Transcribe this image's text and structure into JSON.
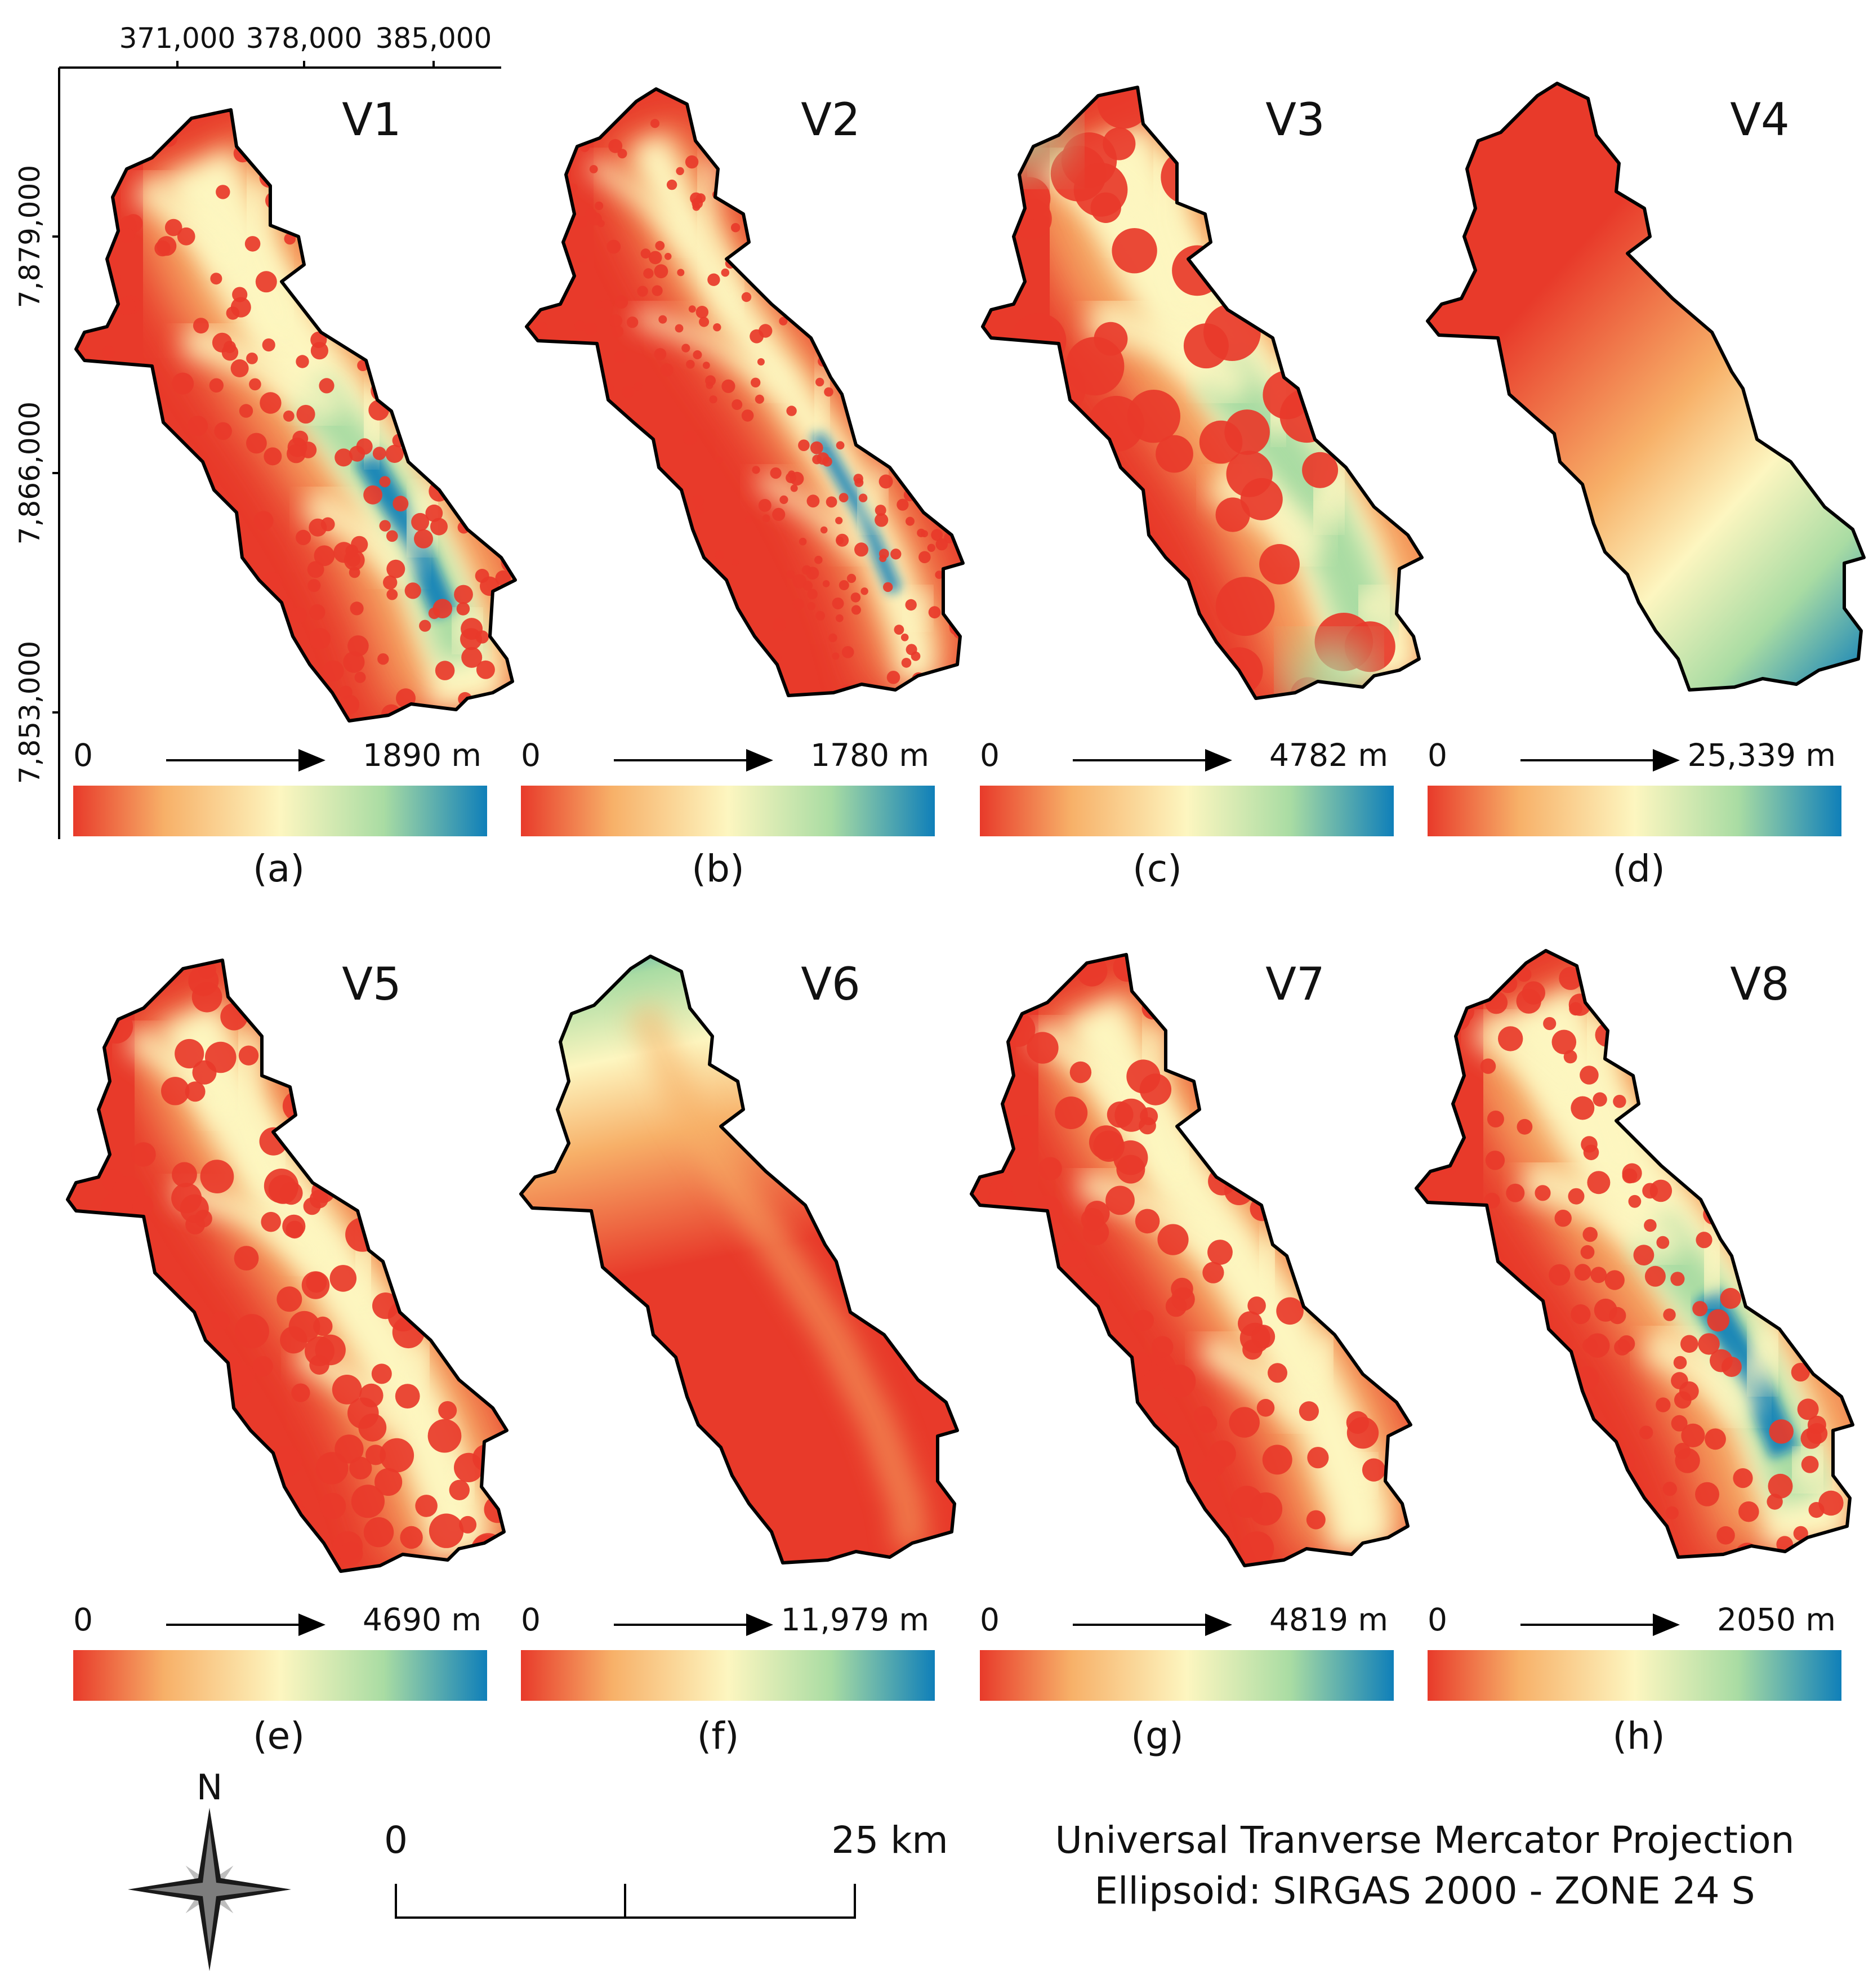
{
  "axes": {
    "x_ticks": [
      "371,000",
      "378,000",
      "385,000"
    ],
    "y_ticks": [
      "7,879,000",
      "7,866,000",
      "7,853,000"
    ]
  },
  "colors": {
    "ramp": [
      "#e83a2a",
      "#f7b068",
      "#fdf6c0",
      "#a9dca3",
      "#0f7fb9"
    ],
    "outline": "#000000"
  },
  "panels": [
    {
      "id": "V1",
      "title": "V1",
      "caption": "(a)",
      "min": "0",
      "max": "1890 m",
      "pattern": "dotted-valley"
    },
    {
      "id": "V2",
      "title": "V2",
      "caption": "(b)",
      "min": "0",
      "max": "1780 m",
      "pattern": "dense-network"
    },
    {
      "id": "V3",
      "title": "V3",
      "caption": "(c)",
      "min": "0",
      "max": "4782 m",
      "pattern": "smooth-valley"
    },
    {
      "id": "V4",
      "title": "V4",
      "caption": "(d)",
      "min": "0",
      "max": "25,339 m",
      "pattern": "north-south-gradient"
    },
    {
      "id": "V5",
      "title": "V5",
      "caption": "(e)",
      "min": "0",
      "max": "4690 m",
      "pattern": "valley"
    },
    {
      "id": "V6",
      "title": "V6",
      "caption": "(f)",
      "min": "0",
      "max": "11,979 m",
      "pattern": "top-gradient"
    },
    {
      "id": "V7",
      "title": "V7",
      "caption": "(g)",
      "min": "0",
      "max": "4819 m",
      "pattern": "valley"
    },
    {
      "id": "V8",
      "title": "V8",
      "caption": "(h)",
      "min": "0",
      "max": "2050 m",
      "pattern": "deep-valley"
    }
  ],
  "north_arrow": {
    "label": "N",
    "icon": "compass-star-icon"
  },
  "scale_bar": {
    "start": "0",
    "end": "25 km"
  },
  "projection": {
    "line1": "Universal Tranverse Mercator Projection",
    "line2": "Ellipsoid:  SIRGAS 2000 - ZONE 24 S"
  }
}
